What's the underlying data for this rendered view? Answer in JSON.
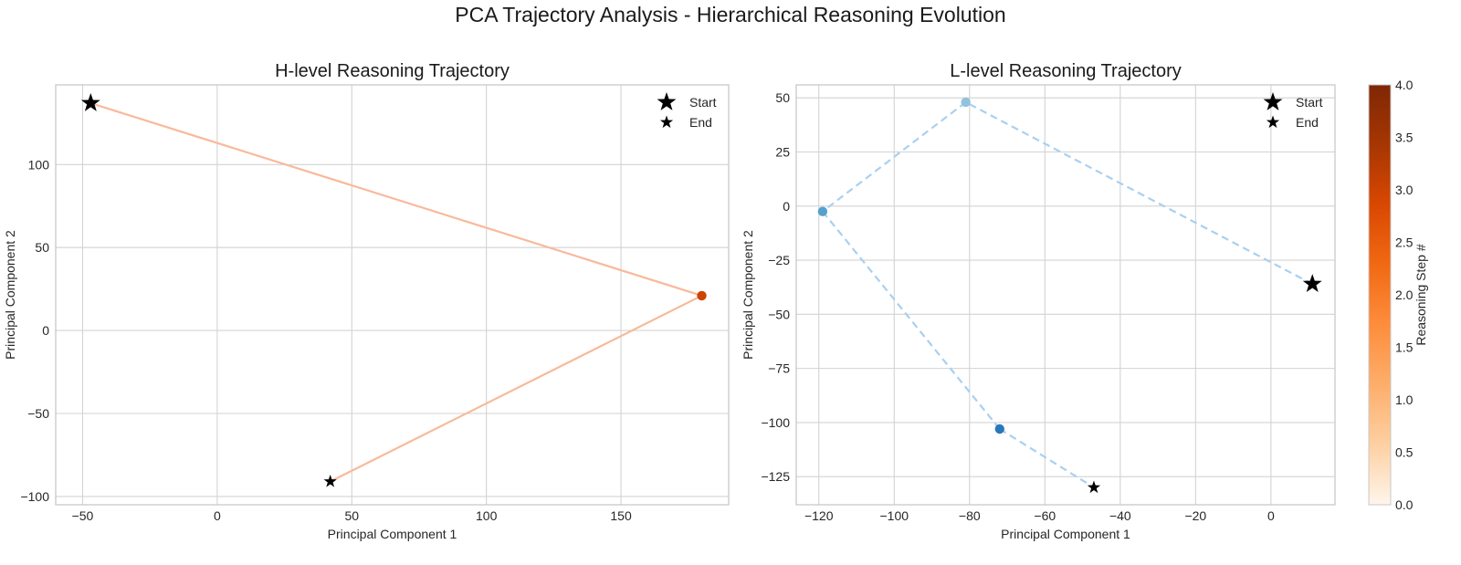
{
  "figure_title": "PCA Trajectory Analysis - Hierarchical Reasoning Evolution",
  "colors": {
    "h_line": "#f9b99b",
    "l_line": "#a9d0f0",
    "grid": "#d3d3d3",
    "marker_black": "#000000",
    "cmap_oranges": [
      "#fff5eb",
      "#fdd0a2",
      "#fdae6b",
      "#fd8d3c",
      "#f16913",
      "#d94801",
      "#a63603",
      "#7f2704"
    ],
    "cmap_blues": [
      "#deebf7",
      "#9ecae1",
      "#6baed6",
      "#4292c6",
      "#2171b5",
      "#08519c"
    ]
  },
  "colorbar": {
    "label": "Reasoning Step #",
    "range": [
      0.0,
      4.0
    ],
    "ticks": [
      "0.0",
      "0.5",
      "1.0",
      "1.5",
      "2.0",
      "2.5",
      "3.0",
      "3.5",
      "4.0"
    ]
  },
  "chart_data": [
    {
      "type": "line",
      "title": "H-level Reasoning Trajectory",
      "xlabel": "Principal Component 1",
      "ylabel": "Principal Component 2",
      "xlim": [
        -60,
        190
      ],
      "ylim": [
        -105,
        148
      ],
      "xticks": [
        -50,
        0,
        50,
        100,
        150
      ],
      "yticks": [
        -100,
        -50,
        0,
        50,
        100
      ],
      "grid": true,
      "legend_position": "top-right",
      "legend": [
        "Start",
        "End"
      ],
      "points": [
        {
          "x": -47,
          "y": 137,
          "step": 0,
          "marker": "start"
        },
        {
          "x": 180,
          "y": 21,
          "step": 3,
          "marker": "dot"
        },
        {
          "x": 42,
          "y": -91,
          "step": 4,
          "marker": "end"
        }
      ]
    },
    {
      "type": "line",
      "title": "L-level Reasoning Trajectory",
      "xlabel": "Principal Component 1",
      "ylabel": "Principal Component 2",
      "xlim": [
        -126,
        17
      ],
      "ylim": [
        -138,
        56
      ],
      "xticks": [
        -120,
        -100,
        -80,
        -60,
        -40,
        -20,
        0
      ],
      "yticks": [
        -125,
        -100,
        -75,
        -50,
        -25,
        0,
        25,
        50
      ],
      "grid": true,
      "legend_position": "top-right",
      "legend": [
        "Start",
        "End"
      ],
      "points": [
        {
          "x": 11,
          "y": -36,
          "step": 0,
          "marker": "start"
        },
        {
          "x": -81,
          "y": 48,
          "step": 1,
          "marker": "dot"
        },
        {
          "x": -119,
          "y": -2.5,
          "step": 2,
          "marker": "dot"
        },
        {
          "x": -72,
          "y": -103,
          "step": 3,
          "marker": "dot"
        },
        {
          "x": -47,
          "y": -130,
          "step": 4,
          "marker": "end"
        }
      ]
    }
  ]
}
